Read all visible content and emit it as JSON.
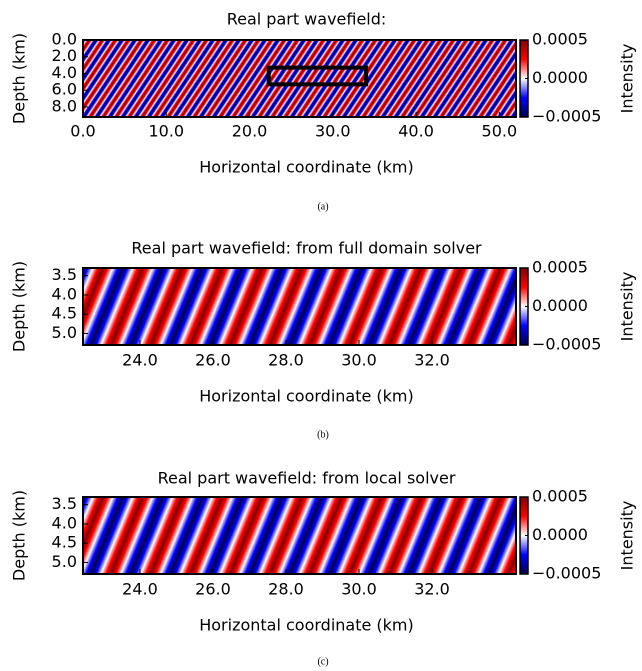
{
  "chart_data": [
    {
      "type": "heatmap",
      "title": "Real part wavefield:",
      "xlabel": "Horizontal coordinate (km)",
      "ylabel": "Depth (km)",
      "xlim": [
        0,
        52
      ],
      "xticks": [
        {
          "value": 0,
          "label": "0.0"
        },
        {
          "value": 10,
          "label": "10.0"
        },
        {
          "value": 20,
          "label": "20.0"
        },
        {
          "value": 30,
          "label": "30.0"
        },
        {
          "value": 40,
          "label": "40.0"
        },
        {
          "value": 50,
          "label": "50.0"
        }
      ],
      "ylim": [
        0,
        9.2
      ],
      "yticks": [
        {
          "value": 0,
          "label": "0.0"
        },
        {
          "value": 2,
          "label": "2.0"
        },
        {
          "value": 4,
          "label": "4.0"
        },
        {
          "value": 6,
          "label": "6.0"
        },
        {
          "value": 8,
          "label": "8.0"
        }
      ],
      "y_inverted": true,
      "box": {
        "x": [
          22.3,
          34
        ],
        "y": [
          3.3,
          5.3
        ]
      },
      "colorbar_label": "Intensity",
      "clim": [
        -0.0005,
        0.0005
      ],
      "cticks": [
        {
          "value": 0.0005,
          "label": "0.0005"
        },
        {
          "value": 0,
          "label": "0.0000"
        },
        {
          "value": -0.0005,
          "label": "−0.0005"
        }
      ],
      "cmap": [
        "#00004c",
        "#0000ff",
        "#ffffff",
        "#ff0000",
        "#800000"
      ],
      "caption": "(a)"
    },
    {
      "type": "heatmap",
      "title": "Real part wavefield: from full domain solver",
      "xlabel": "Horizontal coordinate (km)",
      "ylabel": "Depth (km)",
      "xlim": [
        22.44,
        34.3
      ],
      "xticks": [
        {
          "value": 24,
          "label": "24.0"
        },
        {
          "value": 26,
          "label": "26.0"
        },
        {
          "value": 28,
          "label": "28.0"
        },
        {
          "value": 30,
          "label": "30.0"
        },
        {
          "value": 32,
          "label": "32.0"
        }
      ],
      "ylim": [
        3.3,
        5.3
      ],
      "yticks": [
        3.5,
        {
          "value": 4,
          "label": "4.0"
        },
        4.5,
        {
          "value": 5,
          "label": "5.0"
        }
      ],
      "y_inverted": true,
      "colorbar_label": "Intensity",
      "clim": [
        -0.0005,
        0.0005
      ],
      "cticks": [
        {
          "value": 0.0005,
          "label": "0.0005"
        },
        {
          "value": 0,
          "label": "0.0000"
        },
        {
          "value": -0.0005,
          "label": "−0.0005"
        }
      ],
      "cmap": [
        "#00004c",
        "#0000ff",
        "#ffffff",
        "#ff0000",
        "#800000"
      ],
      "caption": "(b)"
    },
    {
      "type": "heatmap",
      "title": "Real part wavefield: from local solver",
      "xlabel": "Horizontal coordinate (km)",
      "ylabel": "Depth (km)",
      "xlim": [
        22.44,
        34.3
      ],
      "xticks": [
        {
          "value": 24,
          "label": "24.0"
        },
        {
          "value": 26,
          "label": "26.0"
        },
        {
          "value": 28,
          "label": "28.0"
        },
        {
          "value": 30,
          "label": "30.0"
        },
        {
          "value": 32,
          "label": "32.0"
        }
      ],
      "ylim": [
        3.3,
        5.3
      ],
      "yticks": [
        3.5,
        {
          "value": 4,
          "label": "4.0"
        },
        4.5,
        {
          "value": 5,
          "label": "5.0"
        }
      ],
      "y_inverted": true,
      "colorbar_label": "Intensity",
      "clim": [
        -0.0005,
        0.0005
      ],
      "cticks": [
        {
          "value": 0.0005,
          "label": "0.0005"
        },
        {
          "value": 0,
          "label": "0.0000"
        },
        {
          "value": -0.0005,
          "label": "−0.0005"
        }
      ],
      "cmap": [
        "#00004c",
        "#0000ff",
        "#ffffff",
        "#ff0000",
        "#800000"
      ],
      "caption": "(c)"
    }
  ]
}
